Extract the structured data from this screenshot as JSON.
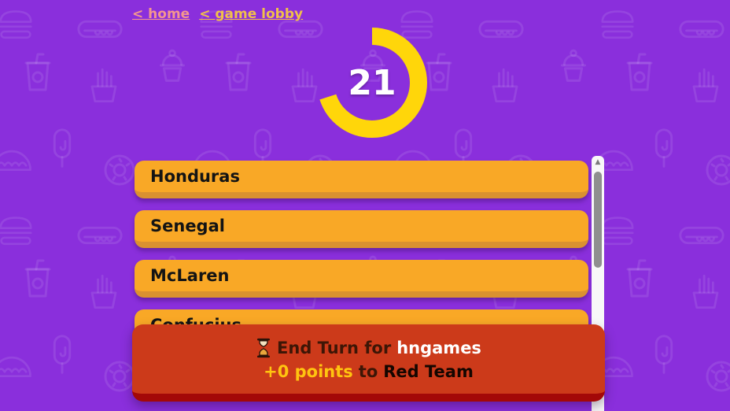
{
  "nav": {
    "home": "< home",
    "game_lobby": "< game lobby"
  },
  "timer": {
    "seconds_remaining": "21",
    "fraction_remaining": 0.7,
    "ring_color": "#FFD60A"
  },
  "answer_list": {
    "items": [
      "Honduras",
      "Senegal",
      "McLaren",
      "Confucius"
    ]
  },
  "end_turn_banner": {
    "prefix": "End Turn for",
    "player_name": "hngames",
    "points_awarded": "+0 points",
    "connector": "to",
    "team_name": "Red Team"
  },
  "icons": {
    "hourglass": "hourglass-icon",
    "scroll_up_arrow": "scroll-up-arrow-icon",
    "background_foods": [
      "burger-icon",
      "hotdog-icon",
      "drink-icon",
      "fries-icon",
      "icecream-icon",
      "taco-icon",
      "popsicle-icon",
      "donut-icon"
    ]
  },
  "colors": {
    "background": "#8A2FDC",
    "button_orange": "#F9A826",
    "button_edge": "#DA9130",
    "banner_red": "#CC3A1A",
    "banner_edge": "#A30808",
    "points_yellow": "#FFC410",
    "home_link": "#F4978E",
    "lobby_link": "#F0C04A"
  }
}
